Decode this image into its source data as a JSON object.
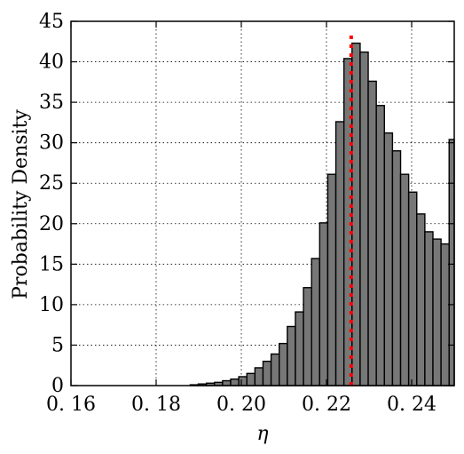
{
  "chart_data": {
    "type": "bar",
    "xlabel": "η",
    "ylabel": "Probability Density",
    "xlim": [
      0.16,
      0.25
    ],
    "ylim": [
      0,
      45
    ],
    "grid": true,
    "bin_width": 0.0019,
    "bar_color": "#777777",
    "bar_edge_color": "#000000",
    "reference_line": {
      "x": 0.2258,
      "color": "#ff0000",
      "style": "dotted"
    },
    "x_ticks": [
      0.16,
      0.18,
      0.2,
      0.22,
      0.24
    ],
    "x_tick_labels": [
      "0. 16",
      "0. 18",
      "0. 20",
      "0. 22",
      "0. 24"
    ],
    "y_ticks": [
      0,
      5,
      10,
      15,
      20,
      25,
      30,
      35,
      40,
      45
    ],
    "y_tick_labels": [
      "0",
      "5",
      "10",
      "15",
      "20",
      "25",
      "30",
      "35",
      "40",
      "45"
    ],
    "bins": [
      {
        "x0": 0.188,
        "value": 0.1
      },
      {
        "x0": 0.1899,
        "value": 0.2
      },
      {
        "x0": 0.1918,
        "value": 0.3
      },
      {
        "x0": 0.1937,
        "value": 0.4
      },
      {
        "x0": 0.1956,
        "value": 0.6
      },
      {
        "x0": 0.1975,
        "value": 0.8
      },
      {
        "x0": 0.1994,
        "value": 1.1
      },
      {
        "x0": 0.2013,
        "value": 1.5
      },
      {
        "x0": 0.2032,
        "value": 2.2
      },
      {
        "x0": 0.2051,
        "value": 3.0
      },
      {
        "x0": 0.207,
        "value": 3.9
      },
      {
        "x0": 0.2089,
        "value": 5.2
      },
      {
        "x0": 0.2108,
        "value": 7.3
      },
      {
        "x0": 0.2127,
        "value": 9.1
      },
      {
        "x0": 0.2146,
        "value": 12.1
      },
      {
        "x0": 0.2165,
        "value": 15.7
      },
      {
        "x0": 0.2184,
        "value": 20.1
      },
      {
        "x0": 0.2203,
        "value": 26.1
      },
      {
        "x0": 0.2222,
        "value": 32.6
      },
      {
        "x0": 0.2241,
        "value": 40.4
      },
      {
        "x0": 0.226,
        "value": 42.3
      },
      {
        "x0": 0.2279,
        "value": 41.2
      },
      {
        "x0": 0.2298,
        "value": 37.6
      },
      {
        "x0": 0.2317,
        "value": 34.6
      },
      {
        "x0": 0.2336,
        "value": 31.2
      },
      {
        "x0": 0.2355,
        "value": 29.0
      },
      {
        "x0": 0.2374,
        "value": 26.1
      },
      {
        "x0": 0.2393,
        "value": 23.9
      },
      {
        "x0": 0.2412,
        "value": 21.2
      },
      {
        "x0": 0.2431,
        "value": 19.0
      },
      {
        "x0": 0.245,
        "value": 18.1
      },
      {
        "x0": 0.2469,
        "value": 17.5
      },
      {
        "x0": 0.2488,
        "value": 30.4
      }
    ]
  }
}
